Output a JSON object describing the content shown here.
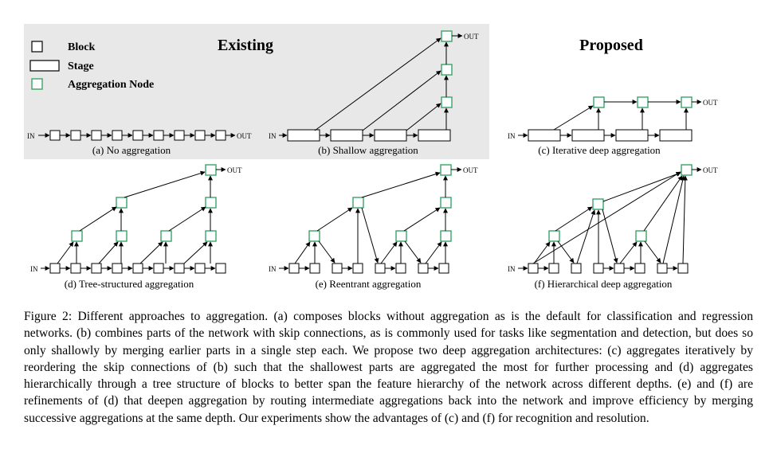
{
  "legend": {
    "block": "Block",
    "stage": "Stage",
    "aggregation_node": "Aggregation Node"
  },
  "headings": {
    "existing": "Existing",
    "proposed": "Proposed"
  },
  "io": {
    "in": "IN",
    "out": "OUT"
  },
  "subfigures": {
    "a": "(a) No aggregation",
    "b": "(b) Shallow aggregation",
    "c": "(c) Iterative deep aggregation",
    "d": "(d) Tree-structured aggregation",
    "e": "(e) Reentrant aggregation",
    "f": "(f) Hierarchical deep aggregation"
  },
  "caption": "Figure 2: Different approaches to aggregation. (a) composes blocks without aggregation as is the default for classification and regression networks. (b) combines parts of the network with skip connections, as is commonly used for tasks like segmentation and detection, but does so only shallowly by merging earlier parts in a single step each. We propose two deep aggregation architectures: (c) aggregates iteratively by reordering the skip connections of (b) such that the shallowest parts are aggregated the most for further processing and (d) aggregates hierarchically through a tree structure of blocks to better span the feature hierarchy of the network across different depths. (e) and (f) are refinements of (d) that deepen aggregation by routing intermediate aggregations back into the network and improve efficiency by merging successive aggregations at the same depth. Our experiments show the advantages of (c) and (f) for recognition and resolution.",
  "colors": {
    "existing_panel": "#e8e8e8",
    "aggregation_node": "#3aa46a",
    "block": "#000000"
  }
}
